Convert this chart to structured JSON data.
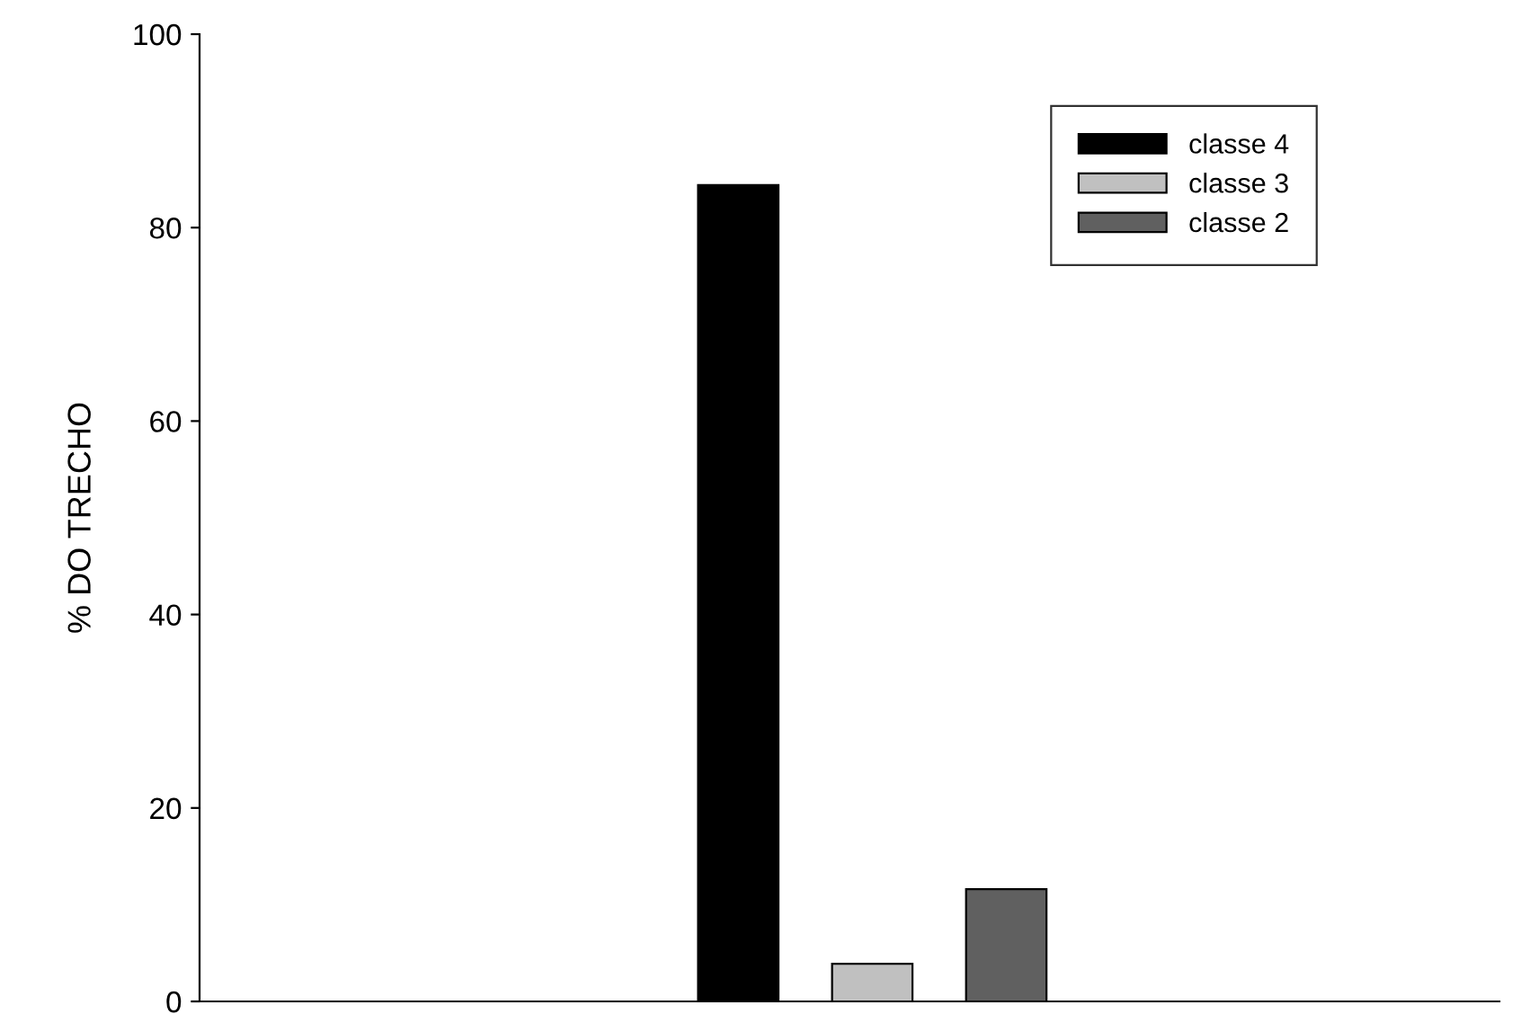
{
  "chart_data": {
    "type": "bar",
    "ylabel": "% DO TRECHO",
    "categories": [
      null
    ],
    "series": [
      {
        "name": "classe 4",
        "color": "#000000",
        "values": [
          84.4
        ]
      },
      {
        "name": "classe 3",
        "color": "#c0c0c0",
        "values": [
          3.9
        ]
      },
      {
        "name": "classe 2",
        "color": "#606060",
        "values": [
          11.6
        ]
      }
    ],
    "ylim": [
      0,
      100
    ],
    "yticks": [
      0,
      20,
      40,
      60,
      80,
      100
    ],
    "grid": false,
    "legend": "top right"
  }
}
